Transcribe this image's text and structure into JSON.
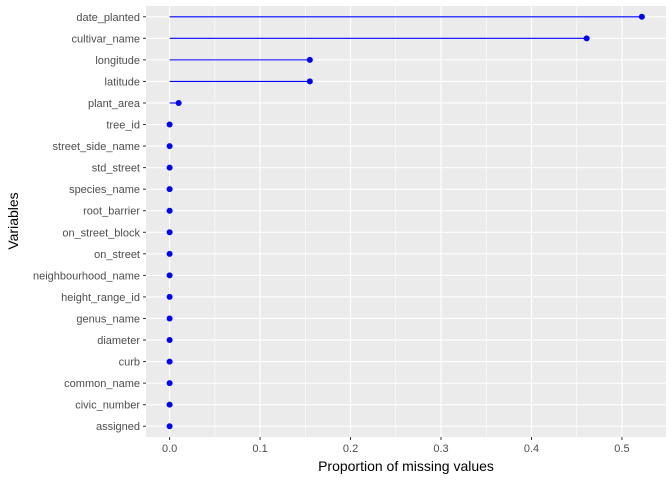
{
  "chart_data": {
    "type": "lollipop",
    "xlabel": "Proportion of missing values",
    "ylabel": "Variables",
    "xlim": [
      -0.0261,
      0.5487
    ],
    "x_ticks": [
      0,
      0.1,
      0.2,
      0.3,
      0.4,
      0.5
    ],
    "x_tick_labels": [
      "0.0",
      "0.1",
      "0.2",
      "0.3",
      "0.4",
      "0.5"
    ],
    "grid": true,
    "point_color": "#0000ff",
    "panel_background": "#ebebeb",
    "grid_color": "#ffffff",
    "categories": [
      "date_planted",
      "cultivar_name",
      "longitude",
      "latitude",
      "plant_area",
      "tree_id",
      "street_side_name",
      "std_street",
      "species_name",
      "root_barrier",
      "on_street_block",
      "on_street",
      "neighbourhood_name",
      "height_range_id",
      "genus_name",
      "diameter",
      "curb",
      "common_name",
      "civic_number",
      "assigned"
    ],
    "values": [
      0.522,
      0.461,
      0.155,
      0.155,
      0.01,
      0,
      0,
      0,
      0,
      0,
      0,
      0,
      0,
      0,
      0,
      0,
      0,
      0,
      0,
      0
    ]
  }
}
